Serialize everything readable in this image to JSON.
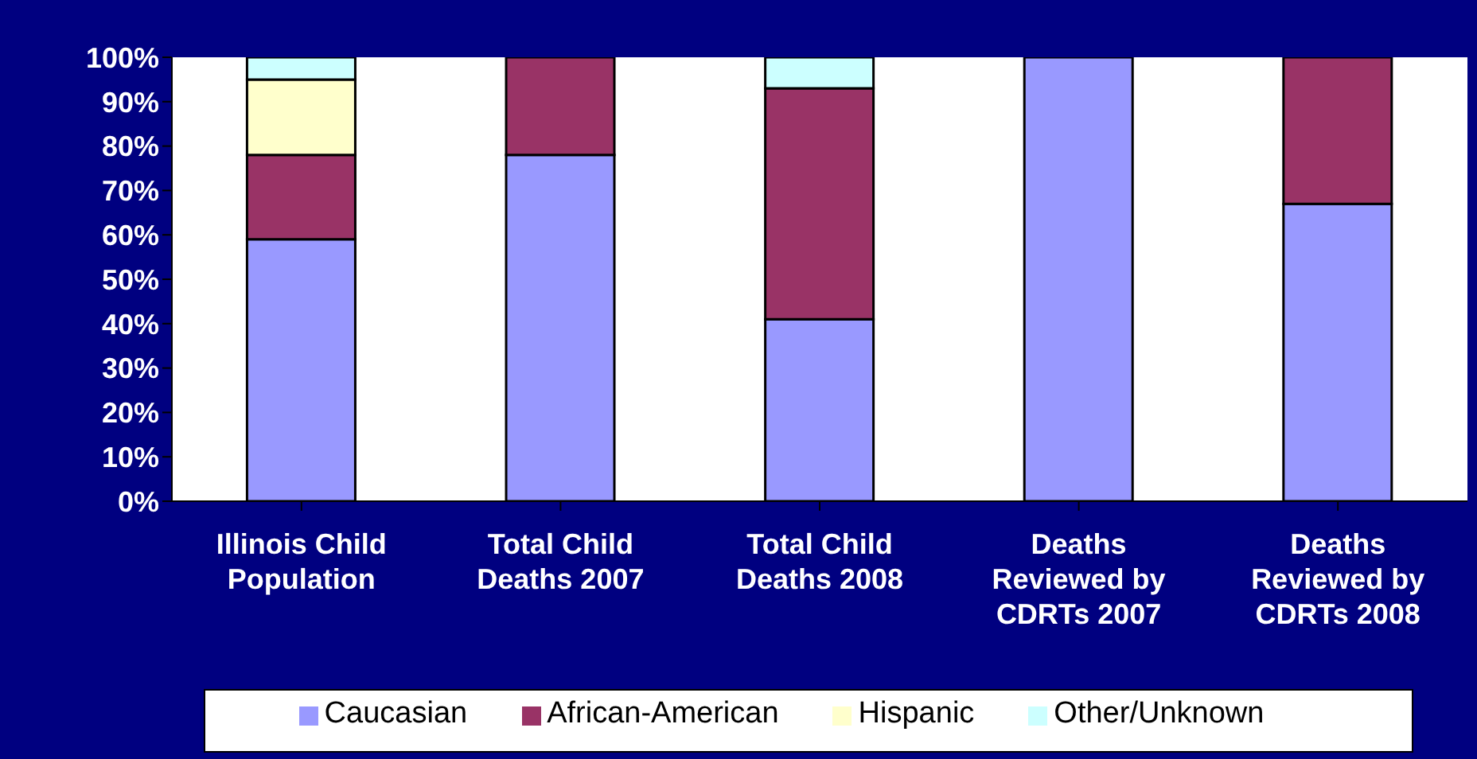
{
  "chart_data": {
    "type": "bar",
    "stacked": true,
    "categories": [
      "Illinois Child Population",
      "Total Child Deaths 2007",
      "Total Child Deaths 2008",
      "Deaths Reviewed by CDRTs 2007",
      "Deaths Reviewed by CDRTs 2008"
    ],
    "series": [
      {
        "name": "Caucasian",
        "color": "#9999ff",
        "values": [
          59,
          78,
          41,
          100,
          67
        ]
      },
      {
        "name": "African-American",
        "color": "#993366",
        "values": [
          19,
          22,
          52,
          null,
          33
        ]
      },
      {
        "name": "Hispanic",
        "color": "#ffffcc",
        "values": [
          17,
          null,
          null,
          null,
          null
        ]
      },
      {
        "name": "Other/Unknown",
        "color": "#ccffff",
        "values": [
          5,
          null,
          7,
          null,
          null
        ]
      }
    ],
    "ylim": [
      0,
      100
    ],
    "yticks": [
      {
        "value": 0,
        "label": "0%"
      },
      {
        "value": 10,
        "label": "10%"
      },
      {
        "value": 20,
        "label": "20%"
      },
      {
        "value": 30,
        "label": "30%"
      },
      {
        "value": 40,
        "label": "40%"
      },
      {
        "value": 50,
        "label": "50%"
      },
      {
        "value": 60,
        "label": "60%"
      },
      {
        "value": 70,
        "label": "70%"
      },
      {
        "value": 80,
        "label": "80%"
      },
      {
        "value": 90,
        "label": "90%"
      },
      {
        "value": 100,
        "label": "100%"
      }
    ],
    "grid": false,
    "legend": "bottom"
  }
}
